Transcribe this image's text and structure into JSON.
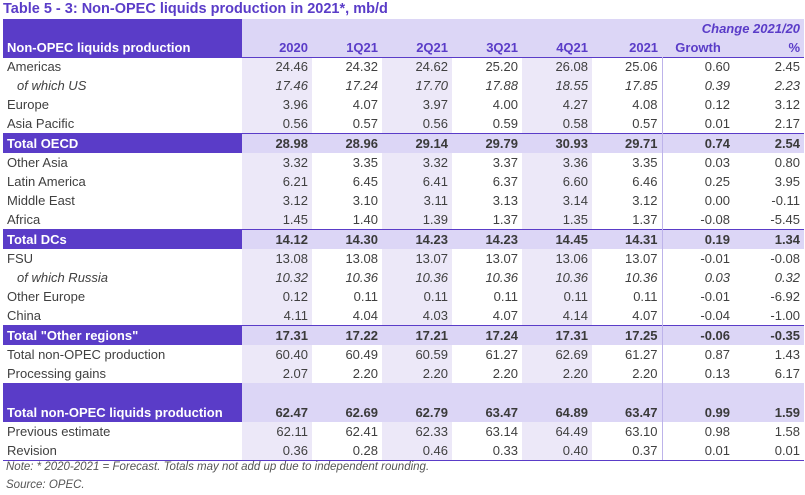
{
  "title": "Table 5 - 3: Non-OPEC liquids production in 2021*, mb/d",
  "header": {
    "change_label": "Change 2021/20",
    "row_label": "Non-OPEC liquids production",
    "columns": [
      "2020",
      "1Q21",
      "2Q21",
      "3Q21",
      "4Q21",
      "2021",
      "Growth",
      "%"
    ]
  },
  "rows": [
    {
      "label": "Americas",
      "values": [
        "24.46",
        "24.32",
        "24.62",
        "25.20",
        "26.08",
        "25.06",
        "0.60",
        "2.45"
      ]
    },
    {
      "label": "of which US",
      "values": [
        "17.46",
        "17.24",
        "17.70",
        "17.88",
        "18.55",
        "17.85",
        "0.39",
        "2.23"
      ]
    },
    {
      "label": "Europe",
      "values": [
        "3.96",
        "4.07",
        "3.97",
        "4.00",
        "4.27",
        "4.08",
        "0.12",
        "3.12"
      ]
    },
    {
      "label": "Asia Pacific",
      "values": [
        "0.56",
        "0.57",
        "0.56",
        "0.59",
        "0.58",
        "0.57",
        "0.01",
        "2.17"
      ]
    },
    {
      "label": "Total OECD",
      "values": [
        "28.98",
        "28.96",
        "29.14",
        "29.79",
        "30.93",
        "29.71",
        "0.74",
        "2.54"
      ]
    },
    {
      "label": "Other Asia",
      "values": [
        "3.32",
        "3.35",
        "3.32",
        "3.37",
        "3.36",
        "3.35",
        "0.03",
        "0.80"
      ]
    },
    {
      "label": "Latin America",
      "values": [
        "6.21",
        "6.45",
        "6.41",
        "6.37",
        "6.60",
        "6.46",
        "0.25",
        "3.95"
      ]
    },
    {
      "label": "Middle East",
      "values": [
        "3.12",
        "3.10",
        "3.11",
        "3.13",
        "3.14",
        "3.12",
        "0.00",
        "-0.11"
      ]
    },
    {
      "label": "Africa",
      "values": [
        "1.45",
        "1.40",
        "1.39",
        "1.37",
        "1.35",
        "1.37",
        "-0.08",
        "-5.45"
      ]
    },
    {
      "label": "Total DCs",
      "values": [
        "14.12",
        "14.30",
        "14.23",
        "14.23",
        "14.45",
        "14.31",
        "0.19",
        "1.34"
      ]
    },
    {
      "label": "FSU",
      "values": [
        "13.08",
        "13.08",
        "13.07",
        "13.07",
        "13.06",
        "13.07",
        "-0.01",
        "-0.08"
      ]
    },
    {
      "label": "of which Russia",
      "values": [
        "10.32",
        "10.36",
        "10.36",
        "10.36",
        "10.36",
        "10.36",
        "0.03",
        "0.32"
      ]
    },
    {
      "label": "Other Europe",
      "values": [
        "0.12",
        "0.11",
        "0.11",
        "0.11",
        "0.11",
        "0.11",
        "-0.01",
        "-6.92"
      ]
    },
    {
      "label": "China",
      "values": [
        "4.11",
        "4.04",
        "4.03",
        "4.07",
        "4.14",
        "4.07",
        "-0.04",
        "-1.00"
      ]
    },
    {
      "label": "Total \"Other regions\"",
      "values": [
        "17.31",
        "17.22",
        "17.21",
        "17.24",
        "17.31",
        "17.25",
        "-0.06",
        "-0.35"
      ]
    },
    {
      "label": "Total non-OPEC production",
      "values": [
        "60.40",
        "60.49",
        "60.59",
        "61.27",
        "62.69",
        "61.27",
        "0.87",
        "1.43"
      ]
    },
    {
      "label": "Processing gains",
      "values": [
        "2.07",
        "2.20",
        "2.20",
        "2.20",
        "2.20",
        "2.20",
        "0.13",
        "6.17"
      ]
    },
    {
      "label": "Total non-OPEC liquids production",
      "values": [
        "62.47",
        "62.69",
        "62.79",
        "63.47",
        "64.89",
        "63.47",
        "0.99",
        "1.59"
      ]
    },
    {
      "label": "Previous estimate",
      "values": [
        "62.11",
        "62.41",
        "62.33",
        "63.14",
        "64.49",
        "63.10",
        "0.98",
        "1.58"
      ]
    },
    {
      "label": "Revision",
      "values": [
        "0.36",
        "0.28",
        "0.46",
        "0.33",
        "0.40",
        "0.37",
        "0.01",
        "0.01"
      ]
    }
  ],
  "notes": {
    "note": "Note: * 2020-2021 = Forecast. Totals may not add up due to independent rounding.",
    "source": "Source: OPEC."
  },
  "colors": {
    "accent": "#5a3cc8",
    "header_fill": "#dcd6f6",
    "column_shade": "#ece8f8"
  }
}
